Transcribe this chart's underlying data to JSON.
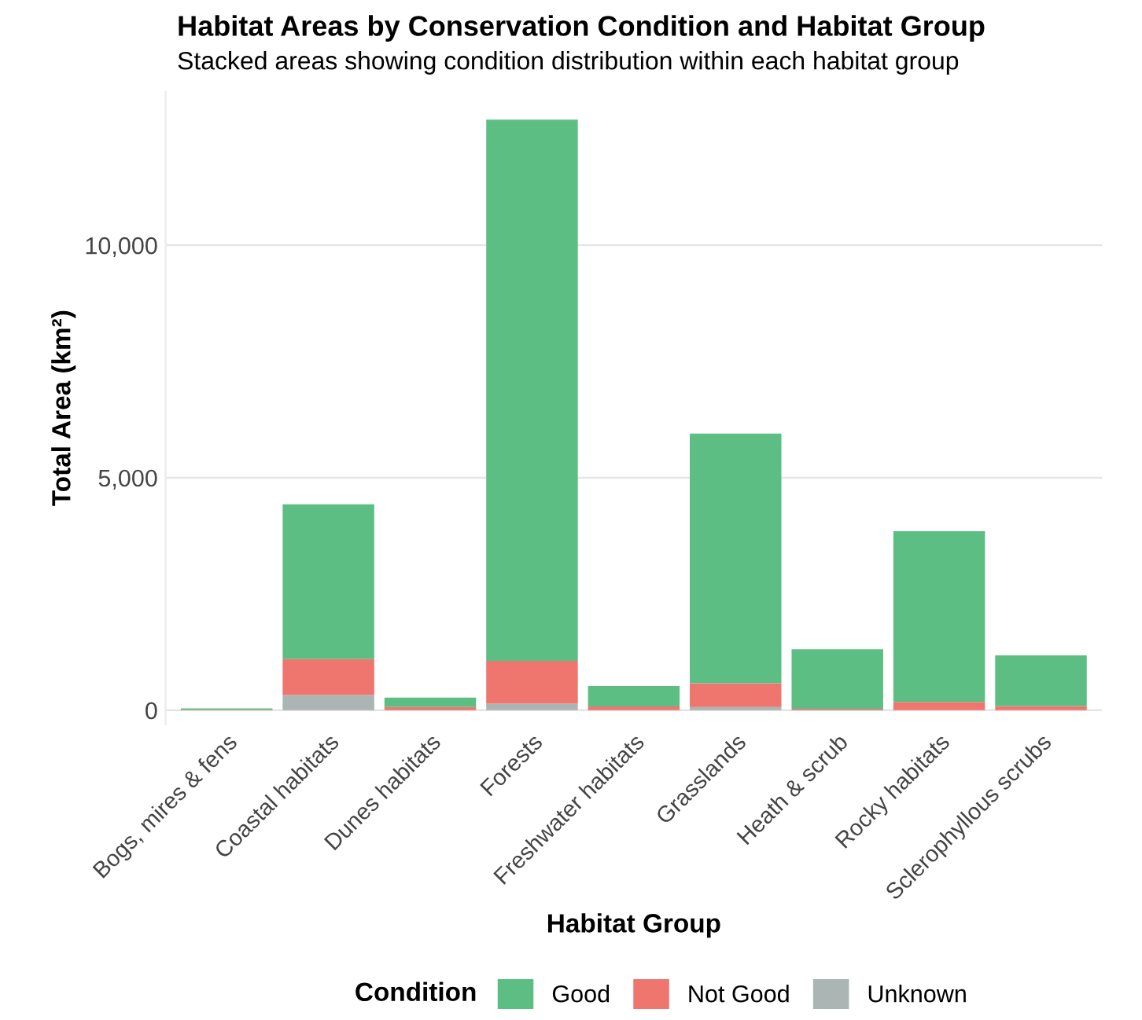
{
  "chart_data": {
    "type": "bar",
    "stacked": true,
    "title": "Habitat Areas by Conservation Condition and Habitat Group",
    "subtitle": "Stacked areas showing condition distribution within each habitat group",
    "xlabel": "Habitat Group",
    "ylabel": "Total Area (km²)",
    "legend_title": "Condition",
    "legend": "bottom",
    "grid": "y",
    "categories": [
      "Bogs, mires & fens",
      "Coastal habitats",
      "Dunes habitats",
      "Forests",
      "Freshwater habitats",
      "Grasslands",
      "Heath & scrub",
      "Rocky habitats",
      "Sclerophyllous scrubs"
    ],
    "series": [
      {
        "name": "Unknown",
        "color": "#aab5b4",
        "values": [
          0,
          330,
          0,
          140,
          0,
          70,
          0,
          0,
          0
        ]
      },
      {
        "name": "Not Good",
        "color": "#ee766f",
        "values": [
          10,
          770,
          70,
          920,
          80,
          510,
          30,
          180,
          90
        ]
      },
      {
        "name": "Good",
        "color": "#5dbe84",
        "values": [
          30,
          3330,
          200,
          11640,
          440,
          5370,
          1280,
          3670,
          1090
        ]
      }
    ],
    "ylim": [
      -300,
      13300
    ],
    "yticks": [
      {
        "value": 0,
        "label": "0"
      },
      {
        "value": 5000,
        "label": "5,000"
      },
      {
        "value": 10000,
        "label": "10,000"
      }
    ]
  }
}
